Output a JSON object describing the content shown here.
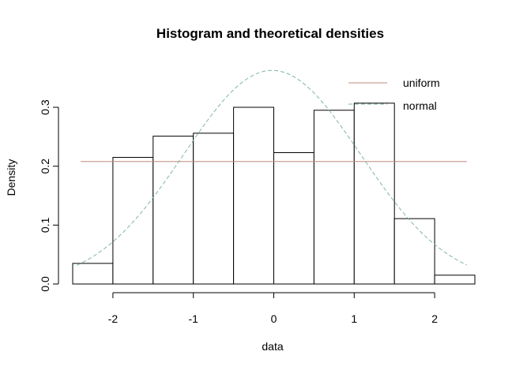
{
  "chart_data": {
    "type": "bar",
    "title": "Histogram and theoretical densities",
    "xlabel": "data",
    "ylabel": "Density",
    "xlim": [
      -2.5,
      2.5
    ],
    "ylim": [
      0,
      0.3
    ],
    "x_ticks": [
      -2,
      -1,
      0,
      1,
      2
    ],
    "x_tick_labels": [
      "-2",
      "-1",
      "0",
      "1",
      "2"
    ],
    "y_ticks": [
      0.0,
      0.1,
      0.2,
      0.3
    ],
    "y_tick_labels": [
      "0.0",
      "0.1",
      "0.2",
      "0.3"
    ],
    "bins": [
      {
        "x0": -2.5,
        "x1": -2.0,
        "density": 0.035
      },
      {
        "x0": -2.0,
        "x1": -1.5,
        "density": 0.215
      },
      {
        "x0": -1.5,
        "x1": -1.0,
        "density": 0.251
      },
      {
        "x0": -1.0,
        "x1": -0.5,
        "density": 0.256
      },
      {
        "x0": -0.5,
        "x1": 0.0,
        "density": 0.3
      },
      {
        "x0": 0.0,
        "x1": 0.5,
        "density": 0.223
      },
      {
        "x0": 0.5,
        "x1": 1.0,
        "density": 0.295
      },
      {
        "x0": 1.0,
        "x1": 1.5,
        "density": 0.307
      },
      {
        "x0": 1.5,
        "x1": 2.0,
        "density": 0.111
      },
      {
        "x0": 2.0,
        "x1": 2.5,
        "density": 0.015
      }
    ],
    "series": [
      {
        "name": "uniform",
        "color": "#c08878",
        "dash": "solid",
        "kind": "uniform",
        "min": -2.4,
        "max": 2.4,
        "density": 0.208
      },
      {
        "name": "normal",
        "color": "#7fb5aa",
        "dash": "dashed",
        "kind": "normal",
        "mean": -0.02,
        "sd": 1.1,
        "x_from": -2.45,
        "x_to": 2.4
      }
    ],
    "legend_position": "top-right",
    "grid": false,
    "bar_fill": "#ffffff",
    "bar_stroke": "#000000"
  }
}
